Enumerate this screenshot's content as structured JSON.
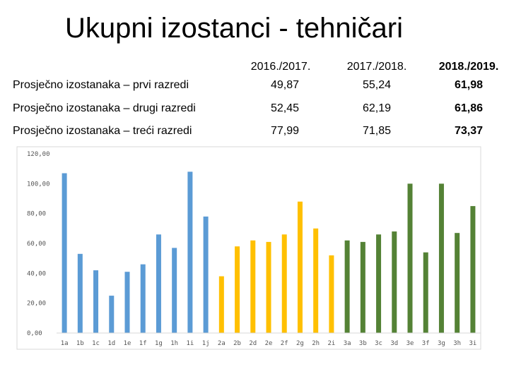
{
  "title": "Ukupni izostanci - tehničari",
  "table": {
    "headers": [
      "2016./2017.",
      "2017./2018.",
      "2018./2019."
    ],
    "rows": [
      {
        "label": "Prosječno izostanaka – prvi razredi",
        "values": [
          "49,87",
          "55,24",
          "61,98"
        ]
      },
      {
        "label": "Prosječno izostanaka – drugi razredi",
        "values": [
          "52,45",
          "62,19",
          "61,86"
        ]
      },
      {
        "label": "Prosječno izostanaka – treći razredi",
        "values": [
          "77,99",
          "71,85",
          "73,37"
        ]
      }
    ]
  },
  "chart_data": {
    "type": "bar",
    "categories": [
      "1a",
      "1b",
      "1c",
      "1d",
      "1e",
      "1f",
      "1g",
      "1h",
      "1i",
      "1j",
      "2a",
      "2b",
      "2d",
      "2e",
      "2f",
      "2g",
      "2h",
      "2i",
      "3a",
      "3b",
      "3c",
      "3d",
      "3e",
      "3f",
      "3g",
      "3h",
      "3i"
    ],
    "values": [
      107,
      53,
      42,
      25,
      41,
      46,
      66,
      57,
      108,
      78,
      38,
      58,
      62,
      61,
      66,
      88,
      70,
      52,
      62,
      61,
      66,
      68,
      100,
      54,
      100,
      67,
      85
    ],
    "ylim": [
      0,
      120
    ],
    "yticks": [
      "0,00",
      "20,00",
      "40,00",
      "60,00",
      "80,00",
      "100,00",
      "120,00"
    ],
    "grid": false,
    "colors": {
      "1": "#5b9bd5",
      "2": "#ffc000",
      "3": "#548235"
    }
  }
}
